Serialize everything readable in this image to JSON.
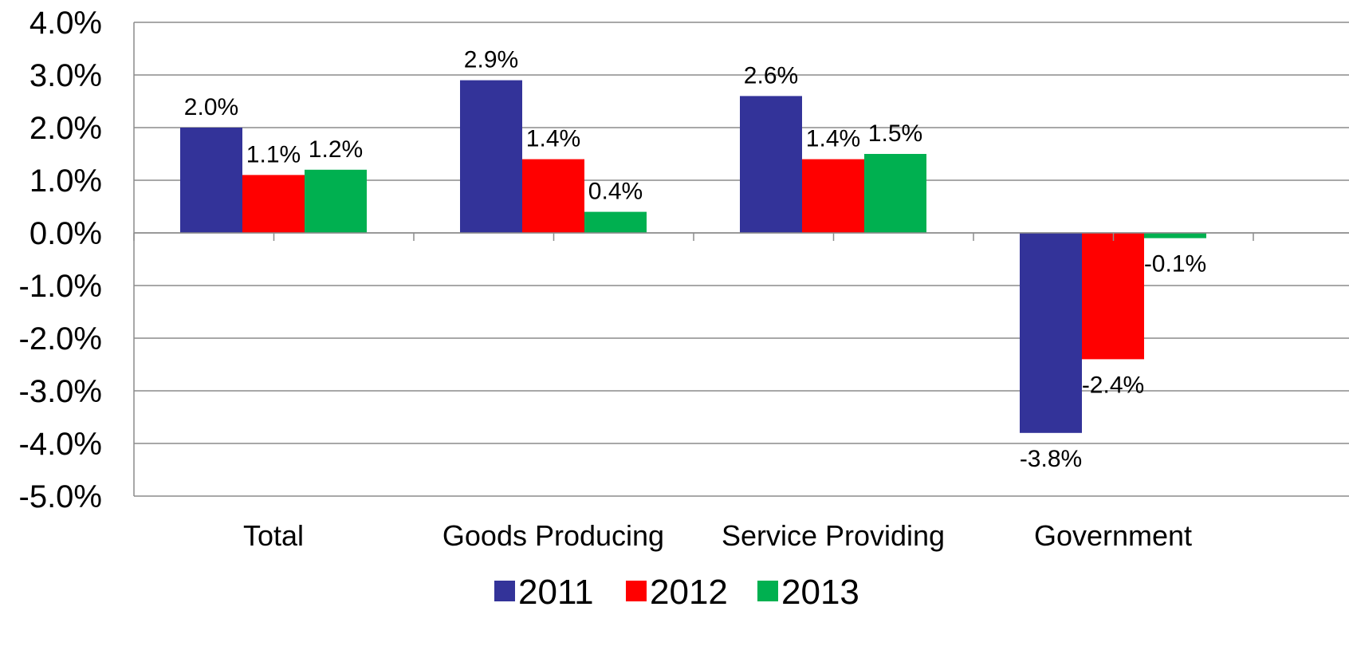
{
  "chart_data": {
    "type": "bar",
    "title": "",
    "xlabel": "",
    "ylabel": "",
    "categories": [
      "Total",
      "Goods Producing",
      "Service Providing",
      "Government"
    ],
    "series": [
      {
        "name": "2011",
        "color": "#333399",
        "values": [
          2.0,
          2.9,
          2.6,
          -3.8
        ],
        "labels": [
          "2.0%",
          "2.9%",
          "2.6%",
          "-3.8%"
        ]
      },
      {
        "name": "2012",
        "color": "#ff0000",
        "values": [
          1.1,
          1.4,
          1.4,
          -2.4
        ],
        "labels": [
          "1.1%",
          "1.4%",
          "1.4%",
          "-2.4%"
        ]
      },
      {
        "name": "2013",
        "color": "#00b050",
        "values": [
          1.2,
          0.4,
          1.5,
          -0.1
        ],
        "labels": [
          "1.2%",
          "0.4%",
          "1.5%",
          "-0.1%"
        ]
      }
    ],
    "ylim": [
      -5.0,
      4.0
    ],
    "yticks": [
      4.0,
      3.0,
      2.0,
      1.0,
      0.0,
      -1.0,
      -2.0,
      -3.0,
      -4.0,
      -5.0
    ],
    "ytick_labels": [
      "4.0%",
      "3.0%",
      "2.0%",
      "1.0%",
      "0.0%",
      "-1.0%",
      "-2.0%",
      "-3.0%",
      "-4.0%",
      "-5.0%"
    ],
    "grid": true,
    "legend_position": "bottom-center"
  }
}
